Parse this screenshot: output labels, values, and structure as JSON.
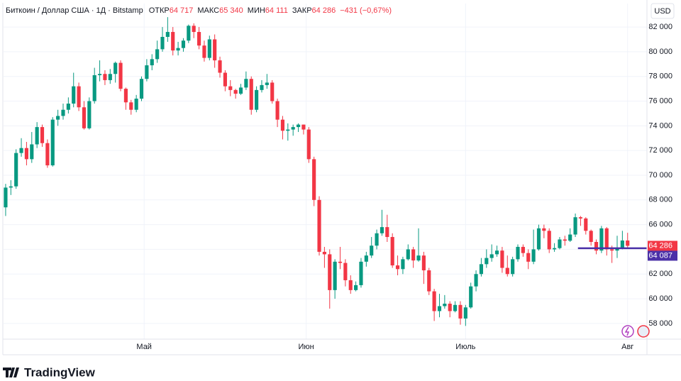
{
  "chart_data": {
    "type": "candlestick",
    "header": {
      "symbol": "Биткоин / Доллар США · 1Д · Bitstamp",
      "open_label": "ОТКР",
      "open": "64 717",
      "high_label": "МАКС",
      "high": "65 340",
      "low_label": "МИН",
      "low": "64 111",
      "close_label": "ЗАКР",
      "close": "64 286",
      "change": "−431 (−0,67%)"
    },
    "currency": "USD",
    "brand": "TradingView",
    "up_color": "#089981",
    "down_color": "#f23645",
    "grid": true,
    "xlim": [
      -0.4,
      122.7
    ],
    "xticks": [
      {
        "value": 26.5,
        "label": "Май"
      },
      {
        "value": 57.5,
        "label": "Июн"
      },
      {
        "value": 88,
        "label": "Июль"
      },
      {
        "value": 119,
        "label": "Авг"
      }
    ],
    "ylim": [
      56730,
      83900
    ],
    "yticks": [
      {
        "value": 58000,
        "label": "58 000"
      },
      {
        "value": 60000,
        "label": "60 000"
      },
      {
        "value": 62000,
        "label": "62 000"
      },
      {
        "value": 64000,
        "label": "64 000"
      },
      {
        "value": 66000,
        "label": "66 000"
      },
      {
        "value": 68000,
        "label": "68 000"
      },
      {
        "value": 70000,
        "label": "70 000"
      },
      {
        "value": 72000,
        "label": "72 000"
      },
      {
        "value": 74000,
        "label": "74 000"
      },
      {
        "value": 76000,
        "label": "76 000"
      },
      {
        "value": 78000,
        "label": "78 000"
      },
      {
        "value": 80000,
        "label": "80 000"
      },
      {
        "value": 82000,
        "label": "82 000"
      }
    ],
    "reference_line": {
      "value": 64087,
      "label": "64 087",
      "color": "#4b30a8"
    },
    "x": [
      0,
      1,
      2,
      3,
      4,
      5,
      6,
      7,
      8,
      9,
      10,
      11,
      12,
      13,
      14,
      15,
      16,
      17,
      18,
      19,
      20,
      21,
      22,
      23,
      24,
      25,
      26,
      27,
      28,
      29,
      30,
      31,
      32,
      33,
      34,
      35,
      36,
      37,
      38,
      39,
      40,
      41,
      42,
      43,
      44,
      45,
      46,
      47,
      48,
      49,
      50,
      51,
      52,
      53,
      54,
      55,
      56,
      57,
      58,
      59,
      60,
      61,
      62,
      63,
      64,
      65,
      66,
      67,
      68,
      69,
      70,
      71,
      72,
      73,
      74,
      75,
      76,
      77,
      78,
      79,
      80,
      81,
      82,
      83,
      84,
      85,
      86,
      87,
      88,
      89,
      90,
      91,
      92,
      93,
      94,
      95,
      96,
      97,
      98,
      99,
      100,
      101,
      102,
      103,
      104,
      105,
      106,
      107,
      108,
      109,
      110,
      111,
      112,
      113,
      114,
      115,
      116,
      117,
      118,
      119
    ],
    "open": [
      67400,
      69000,
      69100,
      71800,
      72200,
      71300,
      72500,
      73900,
      72600,
      70800,
      74500,
      74800,
      75300,
      75800,
      77200,
      75500,
      73800,
      76000,
      78100,
      78200,
      77700,
      78200,
      79100,
      77000,
      75900,
      75300,
      76200,
      77800,
      78900,
      79400,
      80200,
      81200,
      81600,
      80100,
      80300,
      80900,
      82100,
      81600,
      80500,
      79500,
      81000,
      79300,
      78300,
      77200,
      76900,
      76600,
      77100,
      77800,
      75300,
      76900,
      77300,
      77500,
      76000,
      74500,
      73600,
      73700,
      73900,
      74100,
      73700,
      71300,
      68000,
      63800,
      63600,
      60700,
      63000,
      62900,
      61500,
      60700,
      61100,
      63000,
      63500,
      64300,
      65300,
      65800,
      65000,
      62700,
      62400,
      63200,
      64000,
      63100,
      63500,
      62300,
      60600,
      59000,
      59400,
      59600,
      59000,
      59500,
      58400,
      59300,
      61000,
      62000,
      62800,
      63300,
      63600,
      63900,
      62500,
      62000,
      63200,
      64200,
      63700,
      63000,
      64000,
      65700,
      65500,
      64000,
      64100,
      64800,
      64700,
      65200,
      66600,
      66500,
      65500,
      64600,
      63900,
      65700,
      64000,
      63900,
      64100,
      64717
    ],
    "high": [
      69300,
      69600,
      72100,
      73000,
      72700,
      73500,
      74300,
      74100,
      72900,
      74700,
      75300,
      75800,
      76300,
      78300,
      77500,
      76000,
      76300,
      78700,
      79300,
      78500,
      78600,
      79200,
      79300,
      77100,
      76100,
      76500,
      78000,
      79400,
      79800,
      80900,
      82000,
      82800,
      82000,
      80800,
      81100,
      82200,
      82300,
      82000,
      80900,
      81300,
      81400,
      79600,
      78500,
      77700,
      77000,
      77400,
      78400,
      78000,
      77200,
      77700,
      78200,
      77700,
      76200,
      74800,
      74200,
      74100,
      74200,
      74100,
      73900,
      71500,
      68300,
      64200,
      64000,
      63200,
      64200,
      63200,
      61900,
      61400,
      63300,
      63800,
      65000,
      65600,
      67200,
      66800,
      65300,
      63500,
      63400,
      64400,
      64200,
      65700,
      63800,
      62500,
      60800,
      60400,
      60300,
      59800,
      59800,
      59800,
      59500,
      61300,
      62300,
      63300,
      64000,
      64400,
      64300,
      64200,
      63500,
      63400,
      64400,
      64400,
      64000,
      65600,
      66000,
      66000,
      65700,
      64500,
      65000,
      65100,
      65700,
      66900,
      66700,
      66600,
      65600,
      64800,
      65900,
      65800,
      64300,
      65100,
      65500,
      65340
    ],
    "low": [
      66700,
      68400,
      68900,
      71500,
      70800,
      71000,
      72200,
      72300,
      70600,
      70700,
      74000,
      74500,
      75000,
      75500,
      75200,
      73700,
      73700,
      75800,
      77600,
      77300,
      77400,
      77500,
      76800,
      75300,
      74900,
      75100,
      76000,
      77600,
      78500,
      79100,
      80000,
      80800,
      79700,
      79700,
      80000,
      80700,
      81100,
      80200,
      79200,
      79300,
      78700,
      77900,
      76800,
      76400,
      76200,
      76500,
      76900,
      74900,
      75100,
      76700,
      77000,
      75800,
      73900,
      72900,
      72800,
      73200,
      73500,
      73300,
      71000,
      67500,
      63500,
      62500,
      59200,
      60000,
      62400,
      61000,
      60400,
      60600,
      60900,
      62600,
      63300,
      64000,
      65100,
      64600,
      62500,
      61900,
      62000,
      63100,
      62500,
      63000,
      61200,
      60300,
      58200,
      58500,
      59200,
      58500,
      58900,
      57900,
      57800,
      59200,
      60600,
      61800,
      62500,
      63000,
      63400,
      62100,
      61800,
      61800,
      63000,
      63400,
      62400,
      62800,
      63900,
      64900,
      63700,
      63800,
      64000,
      64300,
      64600,
      65000,
      65900,
      65200,
      64300,
      63600,
      63700,
      63500,
      62900,
      63300,
      64000,
      64111
    ],
    "close": [
      69000,
      69100,
      71800,
      72200,
      71300,
      72500,
      73900,
      72600,
      70800,
      74500,
      74800,
      75300,
      75800,
      77200,
      75500,
      73800,
      76000,
      78100,
      78200,
      77700,
      78200,
      79100,
      77000,
      75900,
      75300,
      76200,
      77800,
      78900,
      79400,
      80200,
      81200,
      81600,
      80100,
      80300,
      80900,
      82100,
      81600,
      80500,
      79500,
      81000,
      79300,
      78300,
      77200,
      76900,
      76600,
      77100,
      77800,
      75300,
      76900,
      77300,
      77500,
      76000,
      74500,
      73600,
      73700,
      73900,
      74100,
      73700,
      71300,
      68000,
      63800,
      63600,
      60700,
      63000,
      62900,
      61500,
      60700,
      61100,
      63000,
      63500,
      64300,
      65300,
      65800,
      65000,
      62700,
      62400,
      63200,
      64000,
      63100,
      63500,
      62300,
      60600,
      59000,
      59400,
      59600,
      59000,
      59500,
      58400,
      59300,
      61000,
      62000,
      62800,
      63300,
      63600,
      63900,
      62500,
      62000,
      63200,
      64200,
      63700,
      63000,
      64000,
      65700,
      65500,
      64000,
      64100,
      64800,
      64700,
      65200,
      66600,
      66500,
      65500,
      64600,
      63900,
      65700,
      64000,
      63900,
      64100,
      64717,
      64286
    ]
  }
}
